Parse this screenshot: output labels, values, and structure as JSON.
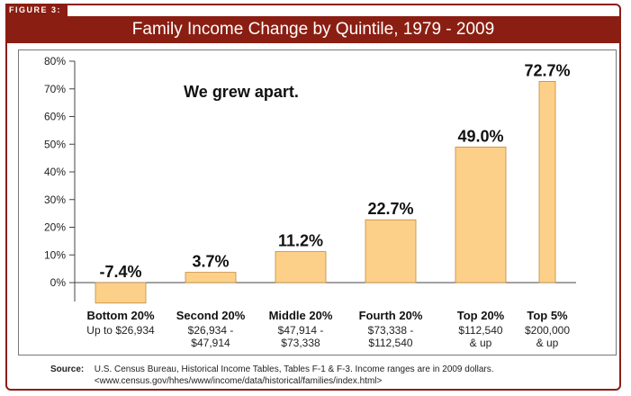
{
  "figure_label": "FIGURE 3:",
  "title": "Family Income Change by Quintile, 1979 - 2009",
  "annotation": "We grew apart.",
  "source_label": "Source:",
  "source_line1": "U.S. Census Bureau, Historical Income Tables, Tables F-1 & F-3.  Income ranges are in 2009 dollars.",
  "source_line2": "<www.census.gov/hhes/www/income/data/historical/families/index.html>",
  "colors": {
    "accent": "#8b1e12",
    "bar": "#fdd08a",
    "bar_stroke": "#c28a3a"
  },
  "chart_data": {
    "type": "bar",
    "title": "Family Income Change by Quintile, 1979 - 2009",
    "ylim": [
      -10,
      80
    ],
    "yticks": [
      "0%",
      "10%",
      "20%",
      "30%",
      "40%",
      "50%",
      "60%",
      "70%",
      "80%"
    ],
    "ytick_values": [
      0,
      10,
      20,
      30,
      40,
      50,
      60,
      70,
      80
    ],
    "grid": false,
    "categories": [
      "Bottom 20%",
      "Second 20%",
      "Middle 20%",
      "Fourth 20%",
      "Top 20%",
      "Top 5%"
    ],
    "category_ranges": [
      [
        "Up to $26,934"
      ],
      [
        "$26,934 -",
        "$47,914"
      ],
      [
        "$47,914 -",
        "$73,338"
      ],
      [
        "$73,338 -",
        "$112,540"
      ],
      [
        "$112,540",
        "& up"
      ],
      [
        "$200,000",
        "& up"
      ]
    ],
    "values": [
      -7.4,
      3.7,
      11.2,
      22.7,
      49.0,
      72.7
    ],
    "value_labels": [
      "-7.4%",
      "3.7%",
      "11.2%",
      "22.7%",
      "49.0%",
      "72.7%"
    ]
  }
}
